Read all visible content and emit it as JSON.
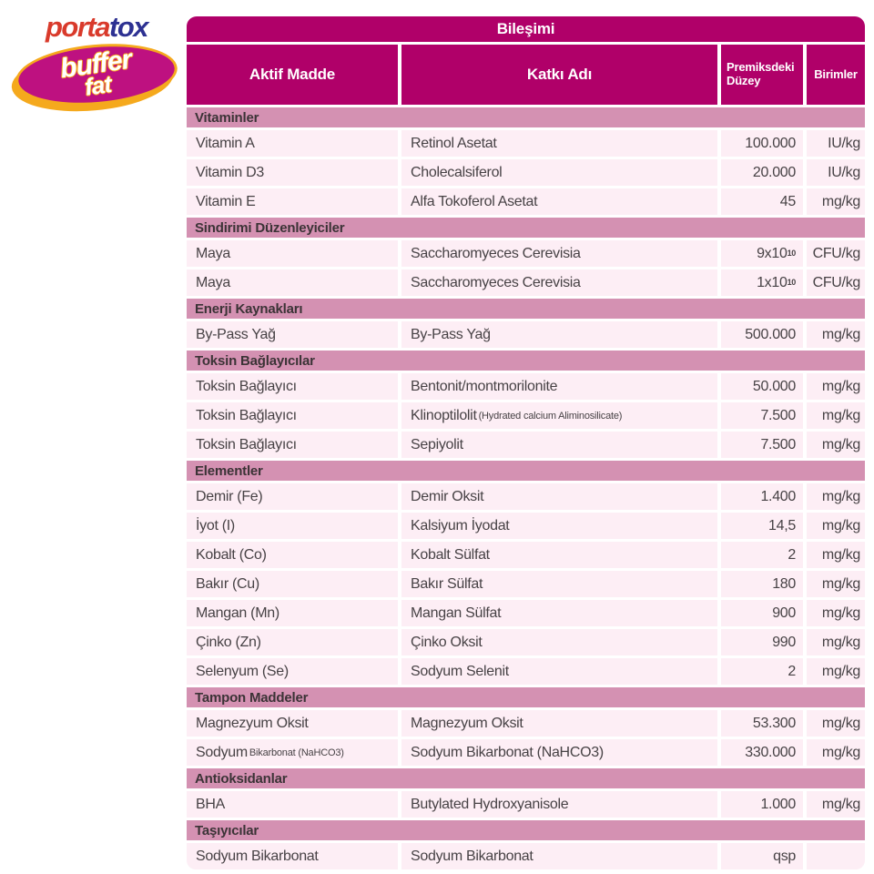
{
  "logo": {
    "brand_part1": "porta",
    "brand_part2": "tox",
    "badge_line1": "buffer",
    "badge_line2": "fat",
    "colors": {
      "brand_red": "#d93a2b",
      "brand_blue": "#2d3192",
      "badge_fill": "#be1180",
      "badge_gold": "#f5a91d"
    }
  },
  "table": {
    "title": "Bileşimi",
    "columns": {
      "aktif": "Aktif Madde",
      "katki": "Katkı Adı",
      "duzey": "Premiksdeki Düzey",
      "birim": "Birimler"
    },
    "colors": {
      "header_bg": "#b00069",
      "section_bg": "#d491b2",
      "row_bg": "#fdeef5"
    },
    "sections": [
      {
        "title": "Vitaminler",
        "rows": [
          {
            "aktif": "Vitamin A",
            "katki": "Retinol Asetat",
            "duzey": "100.000",
            "birim": "IU/kg"
          },
          {
            "aktif": "Vitamin D3",
            "katki": "Cholecalsiferol",
            "duzey": "20.000",
            "birim": "IU/kg"
          },
          {
            "aktif": "Vitamin E",
            "katki": "Alfa Tokoferol Asetat",
            "duzey": "45",
            "birim": "mg/kg"
          }
        ]
      },
      {
        "title": "Sindirimi Düzenleyiciler",
        "rows": [
          {
            "aktif": "Maya",
            "katki": "Saccharomyeces Cerevisia",
            "duzey": "9x10",
            "duzey_sup": "10",
            "birim": "CFU/kg"
          },
          {
            "aktif": "Maya",
            "katki": "Saccharomyeces Cerevisia",
            "duzey": "1x10",
            "duzey_sup": "10",
            "birim": "CFU/kg"
          }
        ]
      },
      {
        "title": "Enerji Kaynakları",
        "rows": [
          {
            "aktif": "By-Pass Yağ",
            "katki": "By-Pass Yağ",
            "duzey": "500.000",
            "birim": "mg/kg"
          }
        ]
      },
      {
        "title": "Toksin Bağlayıcılar",
        "rows": [
          {
            "aktif": "Toksin Bağlayıcı",
            "katki": "Bentonit/montmorilonite",
            "duzey": "50.000",
            "birim": "mg/kg"
          },
          {
            "aktif": "Toksin Bağlayıcı",
            "katki": "Klinoptilolit",
            "katki_small": "(Hydrated calcium Aliminosilicate)",
            "duzey": "7.500",
            "birim": "mg/kg"
          },
          {
            "aktif": "Toksin Bağlayıcı",
            "katki": "Sepiyolit",
            "duzey": "7.500",
            "birim": "mg/kg"
          }
        ]
      },
      {
        "title": "Elementler",
        "rows": [
          {
            "aktif": "Demir (Fe)",
            "katki": "Demir Oksit",
            "duzey": "1.400",
            "birim": "mg/kg"
          },
          {
            "aktif": "İyot (I)",
            "katki": "Kalsiyum İyodat",
            "duzey": "14,5",
            "birim": "mg/kg"
          },
          {
            "aktif": "Kobalt (Co)",
            "katki": "Kobalt Sülfat",
            "duzey": "2",
            "birim": "mg/kg"
          },
          {
            "aktif": "Bakır (Cu)",
            "katki": "Bakır Sülfat",
            "duzey": "180",
            "birim": "mg/kg"
          },
          {
            "aktif": "Mangan (Mn)",
            "katki": "Mangan Sülfat",
            "duzey": "900",
            "birim": "mg/kg"
          },
          {
            "aktif": "Çinko (Zn)",
            "katki": "Çinko Oksit",
            "duzey": "990",
            "birim": "mg/kg"
          },
          {
            "aktif": "Selenyum (Se)",
            "katki": "Sodyum Selenit",
            "duzey": "2",
            "birim": "mg/kg"
          }
        ]
      },
      {
        "title": "Tampon Maddeler",
        "rows": [
          {
            "aktif": "Magnezyum Oksit",
            "katki": "Magnezyum Oksit",
            "duzey": "53.300",
            "birim": "mg/kg"
          },
          {
            "aktif": "Sodyum",
            "aktif_small": "Bikarbonat (NaHCO3)",
            "katki": "Sodyum Bikarbonat (NaHCO3)",
            "duzey": "330.000",
            "birim": "mg/kg"
          }
        ]
      },
      {
        "title": "Antioksidanlar",
        "rows": [
          {
            "aktif": "BHA",
            "katki": "Butylated Hydroxyanisole",
            "duzey": "1.000",
            "birim": "mg/kg"
          }
        ]
      },
      {
        "title": "Taşıyıcılar",
        "rows": [
          {
            "aktif": "Sodyum Bikarbonat",
            "katki": "Sodyum Bikarbonat",
            "duzey": "qsp",
            "birim": ""
          }
        ]
      }
    ]
  }
}
